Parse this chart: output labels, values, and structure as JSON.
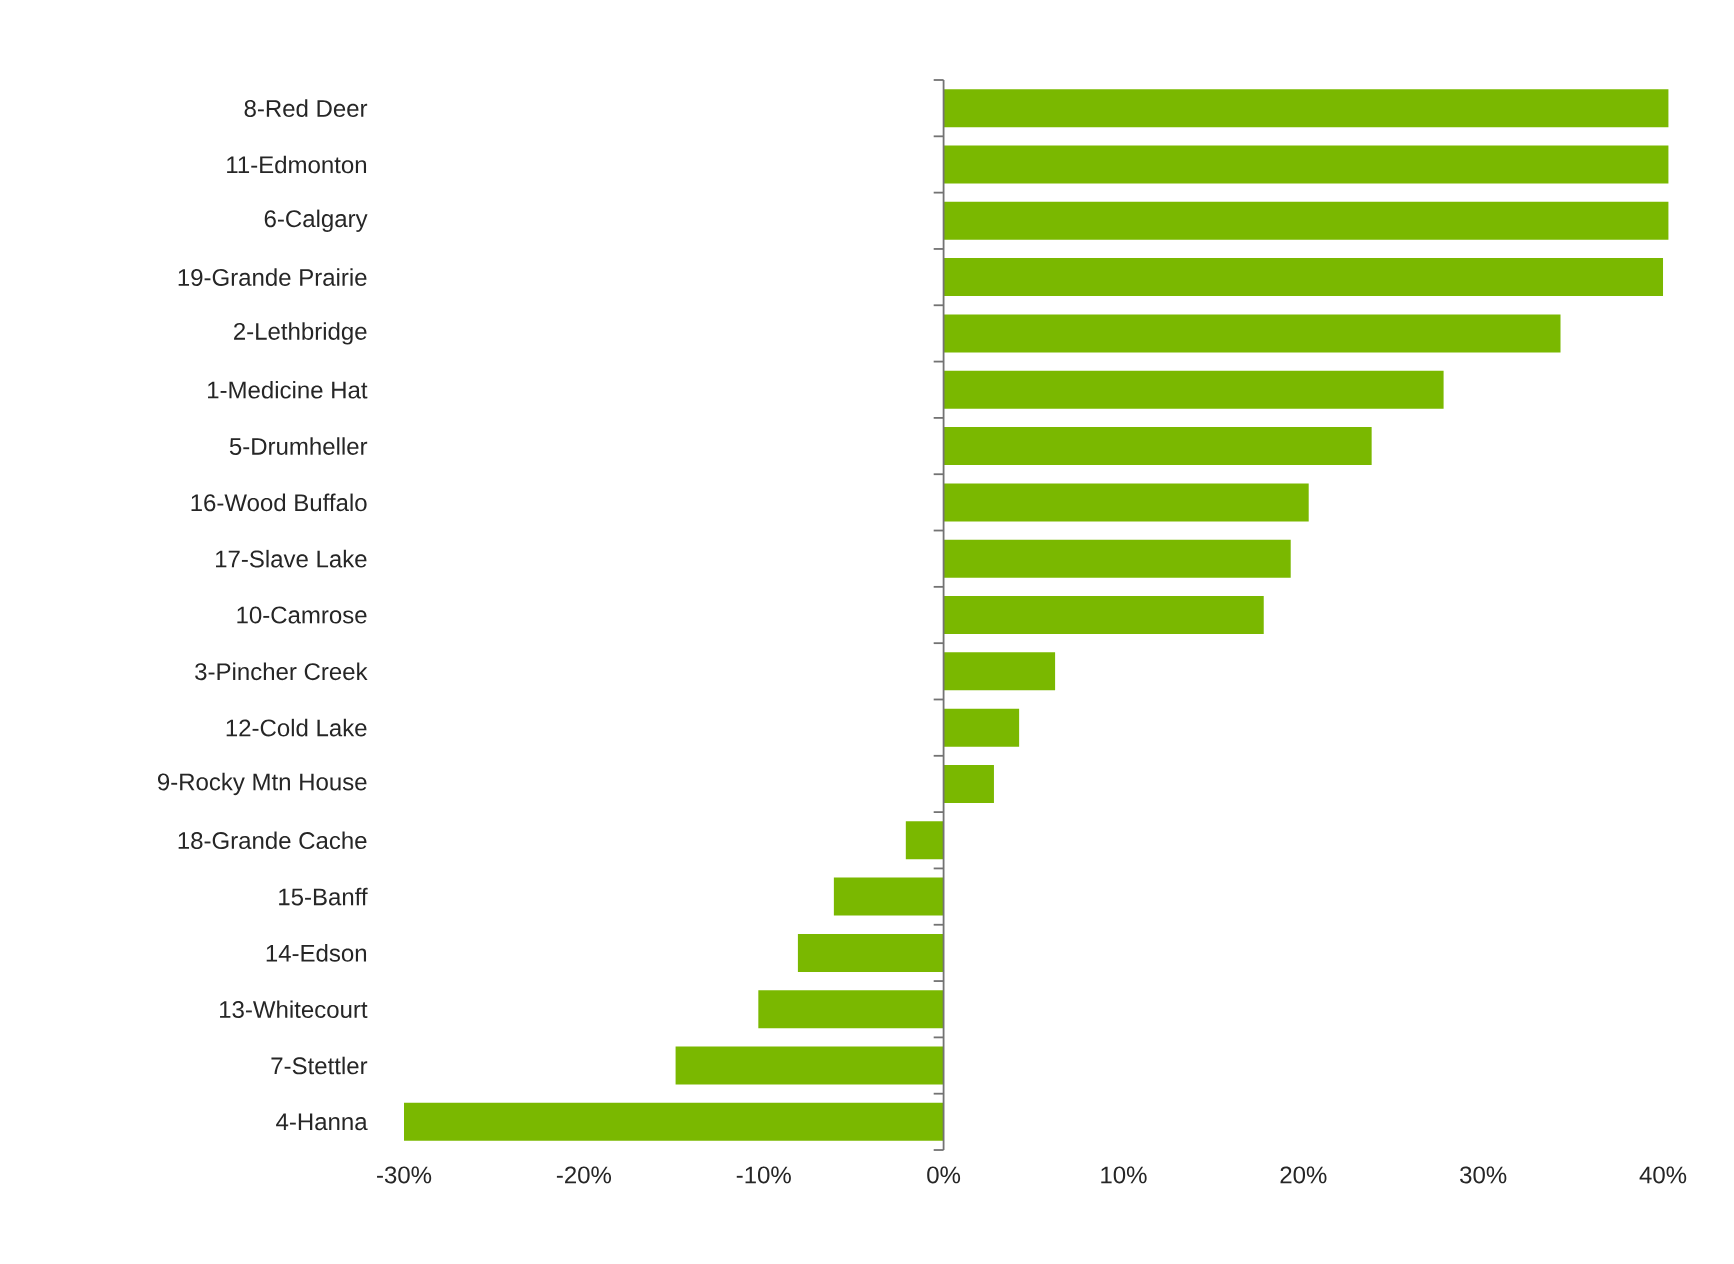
{
  "chart_data": {
    "type": "bar",
    "orientation": "horizontal",
    "color": "#7ab800",
    "categories": [
      "8-Red Deer",
      "11-Edmonton",
      "6-Calgary",
      "19-Grande Prairie",
      "2-Lethbridge",
      "1-Medicine Hat",
      "5-Drumheller",
      "16-Wood Buffalo",
      "17-Slave Lake",
      "10-Camrose",
      "3-Pincher Creek",
      "12-Cold Lake",
      "9-Rocky Mtn House",
      "18-Grande Cache",
      "15-Banff",
      "14-Edson",
      "13-Whitecourt",
      "7-Stettler",
      "4-Hanna"
    ],
    "values": [
      40.3,
      40.3,
      40.3,
      40.0,
      34.3,
      27.8,
      23.8,
      20.3,
      19.3,
      17.8,
      6.2,
      4.2,
      2.8,
      -2.1,
      -6.1,
      -8.1,
      -10.3,
      -14.9,
      -30.0
    ],
    "xlim": [
      -30,
      40.5
    ],
    "xticks": [
      {
        "value": -30,
        "label": "-30%"
      },
      {
        "value": -20,
        "label": "-20%"
      },
      {
        "value": -10,
        "label": "-10%"
      },
      {
        "value": 0,
        "label": "0%"
      },
      {
        "value": 10,
        "label": "10%"
      },
      {
        "value": 20,
        "label": "20%"
      },
      {
        "value": 30,
        "label": "30%"
      },
      {
        "value": 40,
        "label": "40%"
      }
    ]
  }
}
